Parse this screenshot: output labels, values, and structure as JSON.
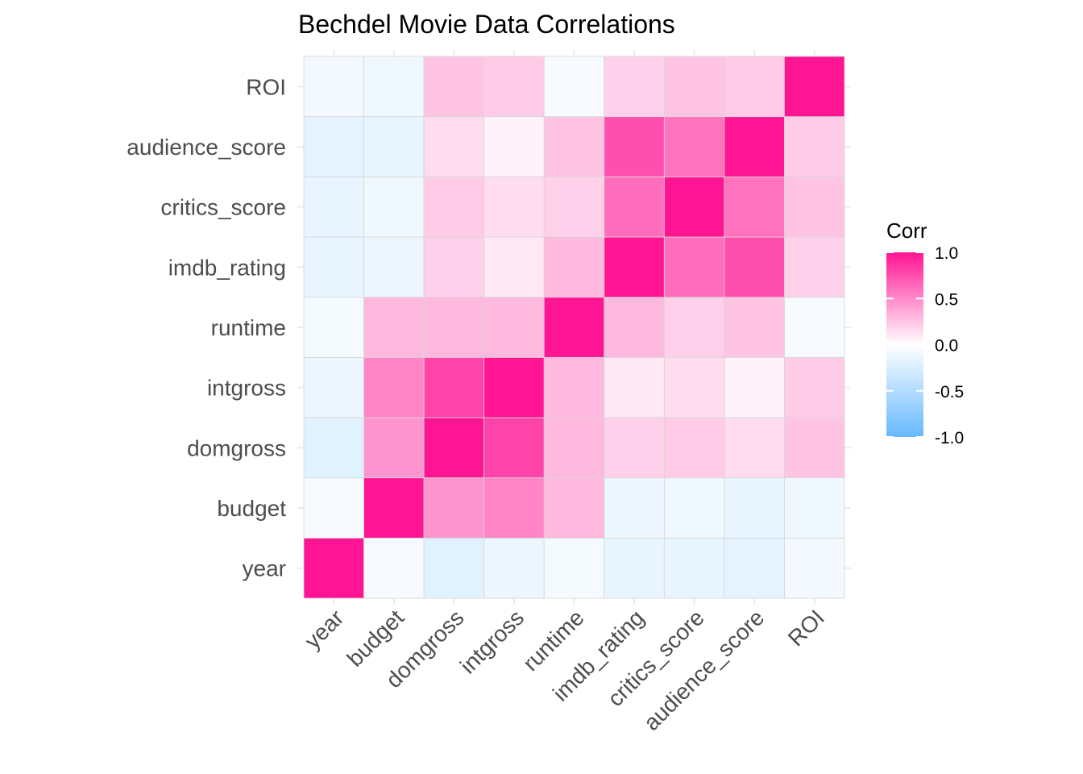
{
  "chart_data": {
    "type": "heatmap",
    "title": "Bechdel Movie Data Correlations",
    "xlabel": "",
    "ylabel": "",
    "variables": [
      "year",
      "budget",
      "domgross",
      "intgross",
      "runtime",
      "imdb_rating",
      "critics_score",
      "audience_score",
      "ROI"
    ],
    "matrix": [
      [
        1.0,
        -0.05,
        -0.2,
        -0.13,
        -0.07,
        -0.15,
        -0.15,
        -0.17,
        -0.08
      ],
      [
        -0.05,
        1.0,
        0.45,
        0.52,
        0.3,
        -0.12,
        -0.1,
        -0.15,
        -0.1
      ],
      [
        -0.2,
        0.45,
        1.0,
        0.8,
        0.3,
        0.2,
        0.22,
        0.15,
        0.25
      ],
      [
        -0.13,
        0.52,
        0.8,
        1.0,
        0.3,
        0.1,
        0.15,
        0.05,
        0.22
      ],
      [
        -0.07,
        0.3,
        0.3,
        0.3,
        1.0,
        0.3,
        0.2,
        0.25,
        -0.05
      ],
      [
        -0.15,
        -0.12,
        0.2,
        0.1,
        0.3,
        1.0,
        0.62,
        0.75,
        0.2
      ],
      [
        -0.15,
        -0.1,
        0.22,
        0.15,
        0.2,
        0.62,
        1.0,
        0.6,
        0.25
      ],
      [
        -0.17,
        -0.15,
        0.15,
        0.05,
        0.25,
        0.75,
        0.6,
        1.0,
        0.22
      ],
      [
        -0.08,
        -0.1,
        0.25,
        0.22,
        -0.05,
        0.2,
        0.25,
        0.22,
        1.0
      ]
    ],
    "color_scale": {
      "low": "#66b8ff",
      "mid": "#ffffff",
      "high": "#ff1493",
      "limits": [
        -1.0,
        1.0
      ]
    },
    "legend": {
      "title": "Corr",
      "ticks": [
        1.0,
        0.5,
        0.0,
        -0.5,
        -1.0
      ],
      "tick_labels": [
        "1.0",
        "0.5",
        "0.0",
        "-0.5",
        "-1.0"
      ],
      "position": "right"
    },
    "grid": true
  }
}
